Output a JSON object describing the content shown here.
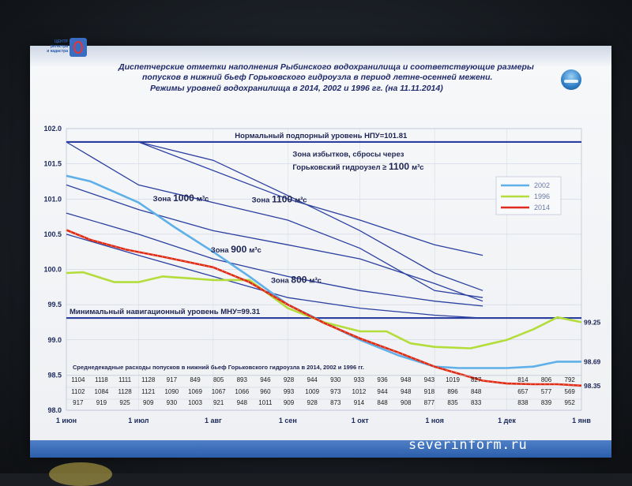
{
  "titles": {
    "line1": "Диспетчерские отметки наполнения Рыбинского водохранилища и соответствующие размеры",
    "line2": "попусков  в нижний бьеф Горьковского гидроузла в период летне-осенней межени.",
    "line3": "Режимы уровней водохранилища в 2014, 2002 и 1996 гг. (на 11.11.2014)"
  },
  "logo_left_text": "ЦЕНТР\nрегистра\nи кадастра",
  "watermark": "severinform.ru",
  "colors": {
    "blue_line": "#2a3fa0",
    "series_2002": "#5fb0e8",
    "series_1996": "#b4dd3c",
    "series_2014": "#e02a1e",
    "frame": "#243a8c"
  },
  "chart_data": {
    "type": "line",
    "title": "Режимы уровней водохранилища в 2014, 2002 и 1996 гг. (на 11.11.2014)",
    "x_axis": {
      "ticks": [
        "1 июн",
        "1 июл",
        "1 авг",
        "1 сен",
        "1 окт",
        "1 ноя",
        "1 дек",
        "1 янв"
      ],
      "tick_days": [
        0,
        30,
        61,
        92,
        122,
        153,
        183,
        214
      ],
      "range_days": [
        0,
        214
      ]
    },
    "y_axis": {
      "ticks": [
        "98.0",
        "98.5",
        "99.0",
        "99.5",
        "100.0",
        "100.5",
        "101.0",
        "101.5",
        "102.0"
      ],
      "range": [
        98.0,
        102.0
      ]
    },
    "reference_lines": [
      {
        "name": "НПУ",
        "label": "Нормальный подпорный уровень НПУ=101.81",
        "value": 101.81
      },
      {
        "name": "МНУ",
        "label": "Минимальный навигационный уровень МНУ=99.31",
        "value": 99.31
      }
    ],
    "zone_lines": [
      {
        "points": [
          [
            0,
            101.81
          ],
          [
            30,
            101.81
          ],
          [
            92,
            101.0
          ],
          [
            122,
            100.7
          ],
          [
            153,
            100.35
          ],
          [
            173,
            100.2
          ]
        ]
      },
      {
        "points": [
          [
            30,
            101.81
          ],
          [
            61,
            101.55
          ],
          [
            92,
            101.05
          ],
          [
            122,
            100.55
          ],
          [
            153,
            99.95
          ],
          [
            173,
            99.7
          ]
        ]
      },
      {
        "points": [
          [
            0,
            101.81
          ],
          [
            30,
            101.2
          ],
          [
            61,
            100.95
          ],
          [
            92,
            100.7
          ],
          [
            122,
            100.3
          ],
          [
            153,
            99.7
          ],
          [
            173,
            99.6
          ]
        ]
      },
      {
        "points": [
          [
            0,
            101.2
          ],
          [
            30,
            100.85
          ],
          [
            61,
            100.55
          ],
          [
            92,
            100.35
          ],
          [
            122,
            100.15
          ],
          [
            153,
            99.8
          ],
          [
            173,
            99.55
          ]
        ]
      },
      {
        "points": [
          [
            0,
            100.8
          ],
          [
            30,
            100.5
          ],
          [
            61,
            100.15
          ],
          [
            92,
            99.9
          ],
          [
            122,
            99.7
          ],
          [
            153,
            99.55
          ],
          [
            173,
            99.48
          ]
        ]
      },
      {
        "points": [
          [
            0,
            100.5
          ],
          [
            30,
            100.2
          ],
          [
            61,
            99.9
          ],
          [
            92,
            99.6
          ],
          [
            122,
            99.45
          ],
          [
            153,
            99.35
          ],
          [
            173,
            99.31
          ]
        ]
      }
    ],
    "zone_labels": [
      {
        "text": "Зона избытков, сбросы через",
        "x": 94,
        "y": 101.6
      },
      {
        "text": "Горьковский гидроузел ≥",
        "big": "1100",
        "unit": "м³с",
        "x": 94,
        "y": 101.42
      },
      {
        "text": "Зона",
        "big": "1000",
        "unit": "м³с",
        "x": 36,
        "y": 100.97
      },
      {
        "text": "Зона",
        "big": "1100",
        "unit": "м³с",
        "x": 77,
        "y": 100.95
      },
      {
        "text": "Зона",
        "big": "900",
        "unit": "м³с",
        "x": 60,
        "y": 100.24
      },
      {
        "text": "Зона",
        "big": "800",
        "unit": "м³с",
        "x": 85,
        "y": 99.81
      }
    ],
    "series": [
      {
        "name": "2002",
        "points": [
          [
            0,
            101.33
          ],
          [
            10,
            101.25
          ],
          [
            20,
            101.1
          ],
          [
            30,
            100.95
          ],
          [
            45,
            100.6
          ],
          [
            61,
            100.25
          ],
          [
            76,
            99.9
          ],
          [
            92,
            99.5
          ],
          [
            107,
            99.25
          ],
          [
            122,
            99.0
          ],
          [
            138,
            98.78
          ],
          [
            153,
            98.62
          ],
          [
            163,
            98.6
          ],
          [
            183,
            98.6
          ],
          [
            194,
            98.62
          ],
          [
            204,
            98.69
          ],
          [
            214,
            98.69
          ]
        ],
        "end_label": "98.69"
      },
      {
        "name": "1996",
        "points": [
          [
            0,
            99.95
          ],
          [
            7,
            99.96
          ],
          [
            20,
            99.82
          ],
          [
            30,
            99.82
          ],
          [
            40,
            99.9
          ],
          [
            61,
            99.85
          ],
          [
            76,
            99.85
          ],
          [
            92,
            99.45
          ],
          [
            107,
            99.25
          ],
          [
            122,
            99.12
          ],
          [
            133,
            99.12
          ],
          [
            143,
            98.95
          ],
          [
            153,
            98.9
          ],
          [
            168,
            98.88
          ],
          [
            183,
            99.0
          ],
          [
            194,
            99.15
          ],
          [
            204,
            99.32
          ],
          [
            214,
            99.25
          ]
        ],
        "end_label": "99.25"
      },
      {
        "name": "2014",
        "points": [
          [
            0,
            100.56
          ],
          [
            10,
            100.42
          ],
          [
            25,
            100.28
          ],
          [
            40,
            100.18
          ],
          [
            61,
            100.03
          ],
          [
            76,
            99.82
          ],
          [
            92,
            99.5
          ],
          [
            107,
            99.24
          ],
          [
            122,
            99.02
          ],
          [
            138,
            98.82
          ],
          [
            153,
            98.62
          ],
          [
            163,
            98.52
          ],
          [
            173,
            98.42
          ],
          [
            183,
            98.38
          ],
          [
            194,
            98.37
          ],
          [
            204,
            98.37
          ],
          [
            214,
            98.35
          ]
        ],
        "end_label": "98.35"
      }
    ],
    "legend": [
      "2002",
      "1996",
      "2014"
    ],
    "legend_position": "right",
    "table_caption": "Среднедекадные расходы попусков в нижний бьеф Горьковского гидроузла в 2014, 2002 и 1996 гг.",
    "table_rows": [
      {
        "year": "2014",
        "values": [
          "1104",
          "1118",
          "1111",
          "1128",
          "917",
          "849",
          "805",
          "893",
          "946",
          "928",
          "944",
          "930",
          "933",
          "936",
          "948",
          "943",
          "1019",
          "827",
          "",
          "814",
          "806",
          "792"
        ]
      },
      {
        "year": "2002",
        "values": [
          "1102",
          "1084",
          "1128",
          "1121",
          "1090",
          "1069",
          "1067",
          "1066",
          "960",
          "993",
          "1009",
          "973",
          "1012",
          "944",
          "948",
          "918",
          "896",
          "848",
          "",
          "657",
          "577",
          "569"
        ]
      },
      {
        "year": "1996",
        "values": [
          "917",
          "919",
          "925",
          "909",
          "930",
          "1003",
          "921",
          "948",
          "1011",
          "909",
          "928",
          "873",
          "914",
          "848",
          "908",
          "877",
          "835",
          "833",
          "",
          "838",
          "839",
          "952"
        ]
      }
    ]
  }
}
